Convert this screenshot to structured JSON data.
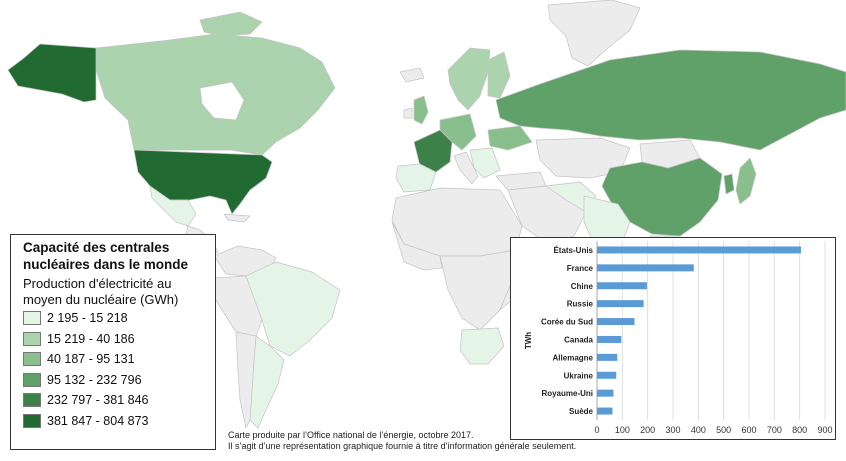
{
  "map": {
    "ocean_color": "#ffffff",
    "no_data_color": "#ececec",
    "border_color": "#c4c4c4"
  },
  "legend": {
    "title": "Capacité des centrales nucléaires dans le monde",
    "subtitle": "Production d'électricité au moyen du nucléaire (GWh)",
    "classes": [
      {
        "label": "2 195 - 15 218",
        "color": "#e4f4e6"
      },
      {
        "label": "15 219 - 40 186",
        "color": "#abd3ad"
      },
      {
        "label": "40 187 - 95 131",
        "color": "#88bf8c"
      },
      {
        "label": "95 132 - 232 796",
        "color": "#5fa168"
      },
      {
        "label": "232 797 - 381 846",
        "color": "#3d8048"
      },
      {
        "label": "381 847 - 804 873",
        "color": "#216b33"
      }
    ]
  },
  "credit": {
    "line1": "Carte produite par l’Office national de l’énergie, octobre 2017.",
    "line2": "Il s’agit d’une représentation graphique fournie à titre d’information générale seulement."
  },
  "chart_data": {
    "type": "bar",
    "orientation": "horizontal",
    "categories": [
      "États-Unis",
      "France",
      "Chine",
      "Russie",
      "Corée du Sud",
      "Canada",
      "Allemagne",
      "Ukraine",
      "Royaume-Uni",
      "Suède"
    ],
    "values": [
      805,
      382,
      197,
      184,
      148,
      96,
      80,
      76,
      65,
      61
    ],
    "xlabel": "",
    "ylabel": "TWh",
    "xlim": [
      0,
      900
    ],
    "xticks": [
      0,
      100,
      200,
      300,
      400,
      500,
      600,
      700,
      800,
      900
    ],
    "grid": true,
    "bar_color": "#5b9bd5"
  }
}
